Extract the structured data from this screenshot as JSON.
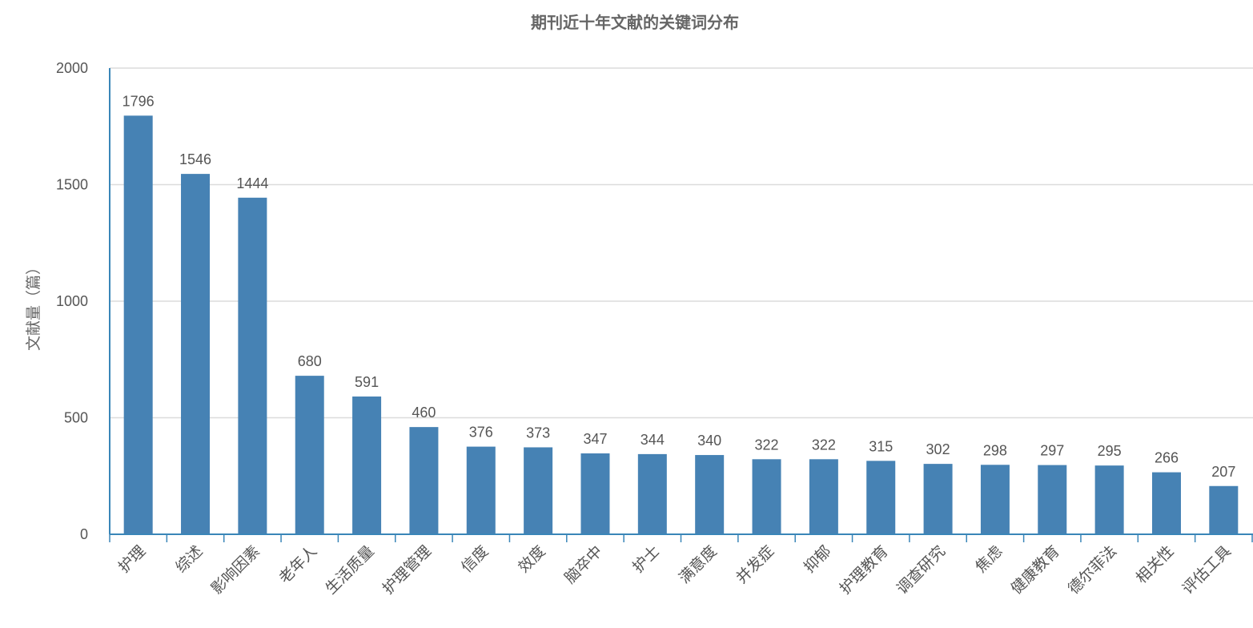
{
  "chart_data": {
    "type": "bar",
    "title": "期刊近十年文献的关键词分布",
    "xlabel": "",
    "ylabel": "文献量（篇）",
    "ylim": [
      0,
      2000
    ],
    "yticks": [
      0,
      500,
      1000,
      1500,
      2000
    ],
    "grid": true,
    "bar_color": "#4682b4",
    "categories": [
      "护理",
      "综述",
      "影响因素",
      "老年人",
      "生活质量",
      "护理管理",
      "信度",
      "效度",
      "脑卒中",
      "护士",
      "满意度",
      "并发症",
      "抑郁",
      "护理教育",
      "调查研究",
      "焦虑",
      "健康教育",
      "德尔菲法",
      "相关性",
      "评估工具"
    ],
    "values": [
      1796,
      1546,
      1444,
      680,
      591,
      460,
      376,
      373,
      347,
      344,
      340,
      322,
      322,
      315,
      302,
      298,
      297,
      295,
      266,
      207
    ]
  }
}
